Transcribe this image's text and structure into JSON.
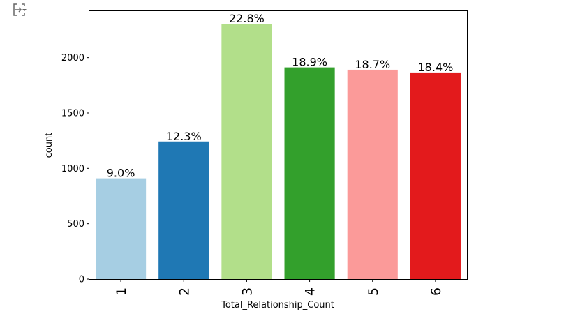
{
  "toolbar": {
    "icon": "output-toggle-icon"
  },
  "chart_data": {
    "type": "bar",
    "categories": [
      "1",
      "2",
      "3",
      "4",
      "5",
      "6"
    ],
    "values": [
      910,
      1243,
      2305,
      1912,
      1891,
      1866
    ],
    "bar_labels": [
      "9.0%",
      "12.3%",
      "22.8%",
      "18.9%",
      "18.7%",
      "18.4%"
    ],
    "colors": [
      "#a6cee3",
      "#1f78b4",
      "#b2df8a",
      "#33a02c",
      "#fb9a99",
      "#e31a1c"
    ],
    "xlabel": "Total_Relationship_Count",
    "ylabel": "count",
    "ylim": [
      0,
      2420
    ],
    "yticks": [
      0,
      500,
      1000,
      1500,
      2000
    ],
    "ytick_labels": [
      "0",
      "500",
      "1000",
      "1500",
      "2000"
    ],
    "grid": false
  }
}
